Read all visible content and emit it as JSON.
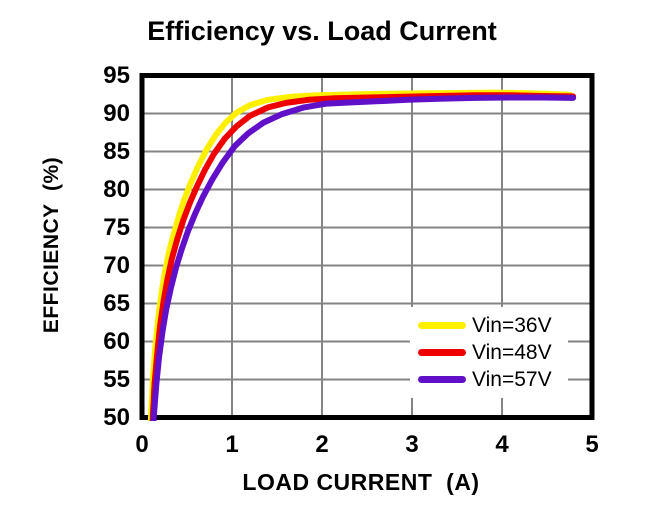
{
  "chart_data": {
    "type": "line",
    "title": "Efficiency vs. Load Current",
    "xlabel": "LOAD CURRENT  (A)",
    "ylabel": "EFFICIENCY  (%)",
    "xlim": [
      0,
      5
    ],
    "ylim": [
      50,
      95
    ],
    "x_ticks": [
      0,
      1,
      2,
      3,
      4,
      5
    ],
    "y_ticks": [
      50,
      55,
      60,
      65,
      70,
      75,
      80,
      85,
      90,
      95
    ],
    "grid": true,
    "legend_position": "inside-lower-right",
    "series": [
      {
        "name": "Vin=36V",
        "color": "#FFF000",
        "points": [
          [
            0.09,
            46
          ],
          [
            0.1,
            50
          ],
          [
            0.12,
            55
          ],
          [
            0.15,
            59.5
          ],
          [
            0.18,
            63
          ],
          [
            0.21,
            65.8
          ],
          [
            0.25,
            68.8
          ],
          [
            0.3,
            71.8
          ],
          [
            0.35,
            74
          ],
          [
            0.41,
            76.5
          ],
          [
            0.47,
            78.7
          ],
          [
            0.54,
            80.8
          ],
          [
            0.62,
            83
          ],
          [
            0.72,
            85.3
          ],
          [
            0.82,
            87.2
          ],
          [
            0.93,
            88.8
          ],
          [
            1.05,
            90.1
          ],
          [
            1.2,
            91.1
          ],
          [
            1.4,
            91.8
          ],
          [
            1.65,
            92.2
          ],
          [
            1.95,
            92.4
          ],
          [
            2.3,
            92.5
          ],
          [
            2.7,
            92.6
          ],
          [
            3.1,
            92.65
          ],
          [
            3.5,
            92.7
          ],
          [
            3.9,
            92.75
          ],
          [
            4.2,
            92.7
          ],
          [
            4.5,
            92.6
          ],
          [
            4.76,
            92.45
          ]
        ]
      },
      {
        "name": "Vin=48V",
        "color": "#EE0000",
        "points": [
          [
            0.11,
            46
          ],
          [
            0.12,
            50
          ],
          [
            0.14,
            54.5
          ],
          [
            0.17,
            58.5
          ],
          [
            0.2,
            62
          ],
          [
            0.24,
            65.3
          ],
          [
            0.28,
            68
          ],
          [
            0.33,
            70.8
          ],
          [
            0.39,
            73.4
          ],
          [
            0.46,
            76
          ],
          [
            0.53,
            78.2
          ],
          [
            0.61,
            80.4
          ],
          [
            0.7,
            82.6
          ],
          [
            0.8,
            84.7
          ],
          [
            0.92,
            86.7
          ],
          [
            1.05,
            88.3
          ],
          [
            1.2,
            89.7
          ],
          [
            1.4,
            90.8
          ],
          [
            1.6,
            91.4
          ],
          [
            1.85,
            91.8
          ],
          [
            2.15,
            92.0
          ],
          [
            2.5,
            92.1
          ],
          [
            2.9,
            92.2
          ],
          [
            3.3,
            92.3
          ],
          [
            3.7,
            92.4
          ],
          [
            4.1,
            92.4
          ],
          [
            4.45,
            92.3
          ],
          [
            4.79,
            92.25
          ]
        ]
      },
      {
        "name": "Vin=57V",
        "color": "#6010C8",
        "points": [
          [
            0.12,
            46
          ],
          [
            0.13,
            50
          ],
          [
            0.16,
            54.5
          ],
          [
            0.19,
            58
          ],
          [
            0.23,
            61.5
          ],
          [
            0.27,
            64.3
          ],
          [
            0.32,
            67
          ],
          [
            0.38,
            69.8
          ],
          [
            0.44,
            72.1
          ],
          [
            0.51,
            74.5
          ],
          [
            0.59,
            76.8
          ],
          [
            0.68,
            79.1
          ],
          [
            0.78,
            81.3
          ],
          [
            0.9,
            83.6
          ],
          [
            1.03,
            85.7
          ],
          [
            1.18,
            87.4
          ],
          [
            1.35,
            88.8
          ],
          [
            1.55,
            89.9
          ],
          [
            1.8,
            90.8
          ],
          [
            2.05,
            91.3
          ],
          [
            2.3,
            91.45
          ],
          [
            2.6,
            91.6
          ],
          [
            2.95,
            91.8
          ],
          [
            3.3,
            91.95
          ],
          [
            3.7,
            92.05
          ],
          [
            4.1,
            92.1
          ],
          [
            4.45,
            92.1
          ],
          [
            4.79,
            92.05
          ]
        ]
      }
    ]
  },
  "colors": {
    "background": "#FFFFFF",
    "text": "#000000",
    "grid": "#848484",
    "border": "#000000",
    "legend_background": "#FFFFFF"
  }
}
